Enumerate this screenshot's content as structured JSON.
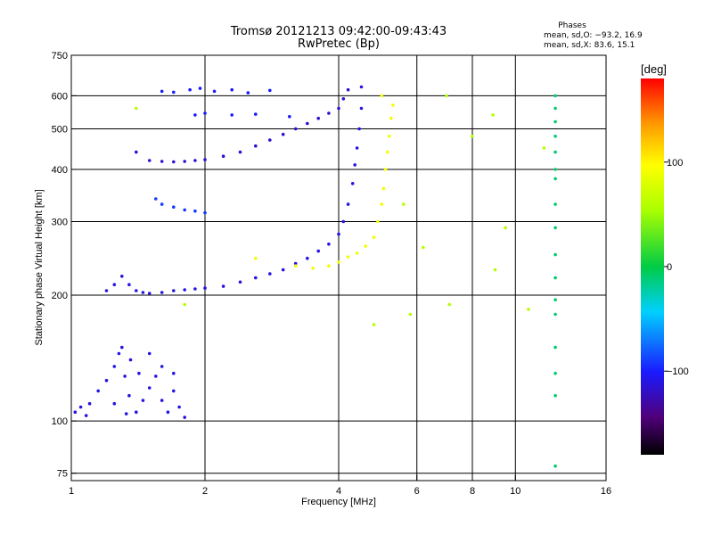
{
  "chart_data": {
    "type": "scatter",
    "title": "Tromsø 20121213 09:42:00-09:43:43",
    "subtitle": "RwPretec (Bp)",
    "xlabel": "Frequency [MHz]",
    "ylabel": "Stationary phase Virtual Height [km]",
    "xscale": "log",
    "yscale": "log",
    "xlim": [
      1,
      16
    ],
    "ylim": [
      72,
      750
    ],
    "xticks": [
      1,
      2,
      4,
      6,
      8,
      10,
      16
    ],
    "xtick_labels": [
      "1",
      "2",
      "4",
      "6",
      "8",
      "10",
      "16"
    ],
    "yticks": [
      75,
      100,
      200,
      300,
      400,
      500,
      600,
      750
    ],
    "ytick_labels": [
      "75",
      "100",
      "200",
      "300",
      "400",
      "500",
      "600",
      "750"
    ],
    "grid": true,
    "phase_stats": {
      "title": "Phases",
      "line_o": "mean, sd,O: −93.2, 16.9",
      "line_x": "mean, sd,X:  83.6, 15.1"
    },
    "colorbar": {
      "label": "[deg]",
      "range": [
        -180,
        180
      ],
      "ticks": [
        100,
        0,
        -100
      ],
      "tick_labels": [
        "100",
        "0",
        "−100"
      ]
    },
    "series": [
      {
        "trace": "low_E",
        "phase": -110,
        "points": [
          [
            1.02,
            105
          ],
          [
            1.05,
            108
          ],
          [
            1.08,
            103
          ],
          [
            1.1,
            110
          ],
          [
            1.15,
            118
          ],
          [
            1.2,
            125
          ],
          [
            1.25,
            135
          ],
          [
            1.28,
            145
          ],
          [
            1.32,
            128
          ],
          [
            1.35,
            115
          ],
          [
            1.4,
            105
          ],
          [
            1.45,
            112
          ],
          [
            1.5,
            120
          ],
          [
            1.55,
            128
          ],
          [
            1.6,
            112
          ],
          [
            1.65,
            105
          ],
          [
            1.7,
            118
          ],
          [
            1.75,
            108
          ],
          [
            1.8,
            102
          ],
          [
            1.3,
            150
          ],
          [
            1.36,
            140
          ],
          [
            1.5,
            145
          ],
          [
            1.25,
            110
          ],
          [
            1.33,
            104
          ],
          [
            1.42,
            130
          ],
          [
            1.6,
            135
          ],
          [
            1.7,
            130
          ]
        ]
      },
      {
        "trace": "F1_O",
        "phase": -110,
        "points": [
          [
            1.2,
            205
          ],
          [
            1.25,
            212
          ],
          [
            1.3,
            222
          ],
          [
            1.35,
            212
          ],
          [
            1.4,
            205
          ],
          [
            1.45,
            203
          ],
          [
            1.5,
            202
          ],
          [
            1.6,
            203
          ],
          [
            1.7,
            205
          ],
          [
            1.8,
            206
          ],
          [
            1.9,
            207
          ],
          [
            2.0,
            208
          ],
          [
            2.2,
            210
          ],
          [
            2.4,
            215
          ],
          [
            2.6,
            220
          ],
          [
            2.8,
            225
          ],
          [
            3.0,
            230
          ],
          [
            3.2,
            238
          ],
          [
            3.4,
            245
          ],
          [
            3.6,
            255
          ],
          [
            3.8,
            265
          ],
          [
            4.0,
            280
          ],
          [
            4.1,
            300
          ],
          [
            4.2,
            330
          ],
          [
            4.3,
            370
          ],
          [
            4.35,
            410
          ],
          [
            4.4,
            450
          ],
          [
            4.45,
            500
          ],
          [
            4.5,
            560
          ],
          [
            4.5,
            630
          ]
        ]
      },
      {
        "trace": "F1_X",
        "phase": 90,
        "points": [
          [
            2.6,
            245
          ],
          [
            3.2,
            235
          ],
          [
            3.5,
            232
          ],
          [
            3.8,
            235
          ],
          [
            4.0,
            240
          ],
          [
            4.2,
            247
          ],
          [
            4.4,
            252
          ],
          [
            4.6,
            262
          ],
          [
            4.8,
            275
          ],
          [
            4.9,
            300
          ],
          [
            5.0,
            330
          ],
          [
            5.05,
            360
          ],
          [
            5.1,
            400
          ],
          [
            5.15,
            440
          ],
          [
            5.2,
            480
          ],
          [
            5.25,
            530
          ],
          [
            5.3,
            570
          ],
          [
            5.0,
            600
          ]
        ]
      },
      {
        "trace": "F2_O",
        "phase": -115,
        "points": [
          [
            1.4,
            440
          ],
          [
            1.5,
            420
          ],
          [
            1.6,
            418
          ],
          [
            1.7,
            417
          ],
          [
            1.8,
            418
          ],
          [
            1.9,
            420
          ],
          [
            2.0,
            422
          ],
          [
            2.2,
            430
          ],
          [
            2.4,
            440
          ],
          [
            2.6,
            455
          ],
          [
            2.8,
            470
          ],
          [
            3.0,
            485
          ],
          [
            3.2,
            500
          ],
          [
            3.4,
            515
          ],
          [
            3.6,
            530
          ],
          [
            3.8,
            545
          ],
          [
            4.0,
            560
          ],
          [
            4.1,
            590
          ],
          [
            4.2,
            620
          ]
        ]
      },
      {
        "trace": "F2_upper",
        "phase": -100,
        "points": [
          [
            1.6,
            615
          ],
          [
            1.7,
            612
          ],
          [
            1.85,
            620
          ],
          [
            1.95,
            625
          ],
          [
            2.1,
            615
          ],
          [
            2.3,
            620
          ],
          [
            2.5,
            610
          ],
          [
            2.8,
            618
          ],
          [
            1.9,
            540
          ],
          [
            2.0,
            545
          ],
          [
            2.3,
            540
          ],
          [
            2.6,
            542
          ],
          [
            3.1,
            535
          ]
        ]
      },
      {
        "trace": "oblique",
        "phase": -90,
        "points": [
          [
            1.55,
            340
          ],
          [
            1.6,
            330
          ],
          [
            1.7,
            325
          ],
          [
            1.8,
            320
          ],
          [
            1.9,
            318
          ],
          [
            2.0,
            315
          ]
        ]
      },
      {
        "trace": "vertical_line",
        "phase": -10,
        "points": [
          [
            12.3,
            600
          ],
          [
            12.3,
            560
          ],
          [
            12.3,
            520
          ],
          [
            12.3,
            480
          ],
          [
            12.3,
            440
          ],
          [
            12.3,
            400
          ],
          [
            12.3,
            380
          ],
          [
            12.3,
            330
          ],
          [
            12.3,
            290
          ],
          [
            12.3,
            250
          ],
          [
            12.3,
            220
          ],
          [
            12.3,
            195
          ],
          [
            12.3,
            180
          ],
          [
            12.3,
            150
          ],
          [
            12.3,
            130
          ],
          [
            12.3,
            115
          ],
          [
            12.3,
            78
          ]
        ]
      },
      {
        "trace": "scatter",
        "phase": 60,
        "points": [
          [
            1.4,
            560
          ],
          [
            1.8,
            190
          ],
          [
            4.8,
            170
          ],
          [
            5.6,
            330
          ],
          [
            7.0,
            600
          ],
          [
            8.9,
            540
          ],
          [
            9.0,
            230
          ],
          [
            10.7,
            185
          ],
          [
            11.6,
            450
          ],
          [
            7.1,
            190
          ],
          [
            6.2,
            260
          ],
          [
            8.0,
            480
          ],
          [
            9.5,
            290
          ],
          [
            5.8,
            180
          ]
        ]
      }
    ]
  }
}
